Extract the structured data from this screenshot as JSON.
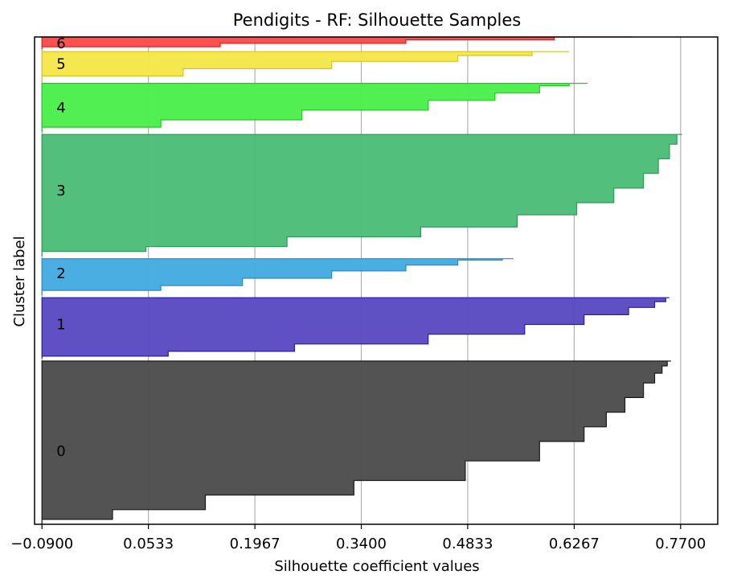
{
  "chart_data": {
    "type": "area",
    "title": "Pendigits - RF: Silhouette Samples",
    "xlabel": "Silhouette coefficient values",
    "ylabel": "Cluster label",
    "xlim": [
      -0.1,
      0.82
    ],
    "ylim": [
      0,
      100
    ],
    "x_ticks": [
      -0.09,
      0.0533,
      0.1967,
      0.34,
      0.4833,
      0.6267,
      0.77
    ],
    "x_tick_labels": [
      "−0.0900",
      "0.0533",
      "0.1967",
      "0.3400",
      "0.4833",
      "0.6267",
      "0.7700"
    ],
    "grid": "x",
    "clusters": [
      {
        "label": "0",
        "color": "#4d4d4d",
        "edge": "#1a1a1a",
        "y_range": [
          0,
          33.5
        ],
        "profile": [
          [
            0.0,
            -0.09
          ],
          [
            1.0,
            0.005
          ],
          [
            3.0,
            0.13
          ],
          [
            6.0,
            0.33
          ],
          [
            9.0,
            0.48
          ],
          [
            13.0,
            0.58
          ],
          [
            17.0,
            0.64
          ],
          [
            20.0,
            0.67
          ],
          [
            23.0,
            0.695
          ],
          [
            26.0,
            0.72
          ],
          [
            29.0,
            0.735
          ],
          [
            31.0,
            0.745
          ],
          [
            32.5,
            0.752
          ],
          [
            33.5,
            0.757
          ]
        ]
      },
      {
        "label": "1",
        "color": "#5a4bc2",
        "edge": "#2a1fa0",
        "y_range": [
          34.0,
          46.5
        ],
        "profile": [
          [
            34.0,
            -0.09
          ],
          [
            34.5,
            0.08
          ],
          [
            35.5,
            0.25
          ],
          [
            37.0,
            0.43
          ],
          [
            39.0,
            0.56
          ],
          [
            41.0,
            0.64
          ],
          [
            43.0,
            0.7
          ],
          [
            44.5,
            0.735
          ],
          [
            45.7,
            0.75
          ],
          [
            46.5,
            0.755
          ]
        ]
      },
      {
        "label": "2",
        "color": "#44abe2",
        "edge": "#2a8bc8",
        "y_range": [
          47.0,
          54.5
        ],
        "profile": [
          [
            47.0,
            -0.09
          ],
          [
            48.0,
            0.07
          ],
          [
            49.0,
            0.18
          ],
          [
            50.5,
            0.3
          ],
          [
            52.0,
            0.4
          ],
          [
            53.2,
            0.47
          ],
          [
            54.2,
            0.53
          ],
          [
            54.5,
            0.545
          ]
        ]
      },
      {
        "label": "3",
        "color": "#4cbe78",
        "edge": "#2a9a55",
        "y_range": [
          55.0,
          80.0
        ],
        "profile": [
          [
            55.0,
            -0.09
          ],
          [
            56.0,
            0.05
          ],
          [
            57.0,
            0.24
          ],
          [
            59.0,
            0.42
          ],
          [
            61.0,
            0.55
          ],
          [
            63.5,
            0.63
          ],
          [
            66.0,
            0.68
          ],
          [
            69.0,
            0.72
          ],
          [
            72.0,
            0.74
          ],
          [
            75.0,
            0.755
          ],
          [
            78.0,
            0.765
          ],
          [
            80.0,
            0.772
          ]
        ]
      },
      {
        "label": "4",
        "color": "#4bee4b",
        "edge": "#22c922",
        "y_range": [
          80.5,
          90.5
        ],
        "profile": [
          [
            80.5,
            -0.09
          ],
          [
            81.5,
            0.07
          ],
          [
            83.0,
            0.26
          ],
          [
            85.0,
            0.43
          ],
          [
            87.0,
            0.52
          ],
          [
            88.5,
            0.58
          ],
          [
            90.0,
            0.62
          ],
          [
            90.5,
            0.645
          ]
        ]
      },
      {
        "label": "5",
        "color": "#f5e649",
        "edge": "#d6c421",
        "y_range": [
          91.0,
          97.0
        ],
        "profile": [
          [
            91.0,
            -0.09
          ],
          [
            92.0,
            0.1
          ],
          [
            93.5,
            0.3
          ],
          [
            95.0,
            0.47
          ],
          [
            96.2,
            0.57
          ],
          [
            97.0,
            0.62
          ]
        ]
      },
      {
        "label": "6",
        "color": "#ff4a4a",
        "edge": "#e11f1f",
        "y_range": [
          97.5,
          100.0
        ],
        "profile": [
          [
            97.5,
            -0.09
          ],
          [
            98.0,
            0.15
          ],
          [
            98.7,
            0.4
          ],
          [
            99.4,
            0.6
          ],
          [
            100.0,
            0.705
          ]
        ]
      }
    ],
    "cluster_label_positions": [
      15.0,
      41.0,
      51.5,
      68.5,
      85.5,
      94.5,
      98.7
    ]
  }
}
